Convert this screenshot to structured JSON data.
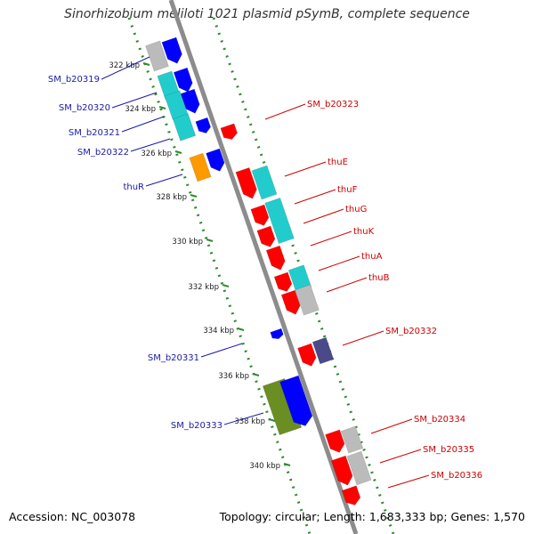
{
  "title": "Sinorhizobium meliloti 1021 plasmid pSymB, complete sequence",
  "footer": {
    "accession": "Accession: NC_003078",
    "summary": "Topology: circular; Length: 1,683,333 bp; Genes: 1,570"
  },
  "ruler_ticks": [
    "322 kbp",
    "324 kbp",
    "326 kbp",
    "328 kbp",
    "330 kbp",
    "332 kbp",
    "334 kbp",
    "336 kbp",
    "338 kbp",
    "340 kbp"
  ],
  "left_labels": [
    "SM_b20319",
    "SM_b20320",
    "SM_b20321",
    "SM_b20322",
    "thuR",
    "SM_b20331",
    "SM_b20333"
  ],
  "right_labels": [
    "SM_b20323",
    "thuE",
    "thuF",
    "thuG",
    "thuK",
    "thuA",
    "thuB",
    "SM_b20332",
    "SM_b20334",
    "SM_b20335",
    "SM_b20336"
  ],
  "colors": {
    "forward_label": "#1a1aa6",
    "reverse_label": "#cc0000",
    "backbone": "#8c8c8c",
    "ruler_dots": "#2e8b2e",
    "cds_red": "#ff0000",
    "cds_blue": "#0000ff",
    "cds_cyan": "#22cccc",
    "cds_grey": "#bbbbbb",
    "cds_orange": "#ff9900",
    "cds_olive": "#6b8e23",
    "cds_slate": "#4a4a8a"
  }
}
